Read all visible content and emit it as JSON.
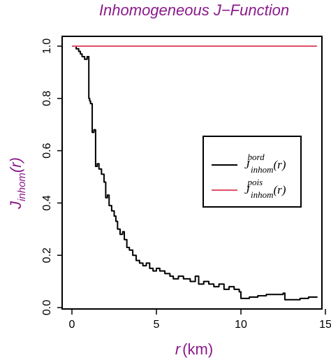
{
  "chart_data": {
    "type": "line",
    "title": "Inhomogeneous J−Function",
    "xlabel": "r",
    "xlabel_unit": "(km)",
    "ylabel": "J",
    "ylabel_sub": "inhom",
    "ylabel_arg": "(r)",
    "xlim": [
      0,
      15
    ],
    "ylim": [
      0,
      1.0
    ],
    "xticks": [
      "0",
      "5",
      "10",
      "15"
    ],
    "yticks": [
      "0.0",
      "0.2",
      "0.4",
      "0.6",
      "0.8",
      "1.0"
    ],
    "legend_position": "right",
    "series": [
      {
        "name_base": "J",
        "name_sup": "bord",
        "name_sub": "inhom",
        "name_arg": "(r)",
        "color": "#000000",
        "step": true,
        "x": [
          0,
          0.25,
          0.4,
          0.5,
          0.6,
          0.75,
          0.9,
          1.0,
          1.05,
          1.1,
          1.2,
          1.3,
          1.4,
          1.5,
          1.6,
          1.75,
          1.9,
          2.0,
          2.1,
          2.2,
          2.35,
          2.5,
          2.6,
          2.7,
          2.85,
          3.0,
          3.1,
          3.25,
          3.4,
          3.6,
          3.8,
          4.0,
          4.2,
          4.4,
          4.6,
          4.8,
          5.0,
          5.2,
          5.5,
          5.8,
          6.0,
          6.3,
          6.6,
          7.0,
          7.3,
          7.5,
          7.8,
          8.1,
          8.4,
          8.7,
          9.0,
          9.3,
          9.6,
          9.9,
          10.0,
          10.5,
          11.0,
          11.5,
          12.0,
          12.5,
          12.6,
          13.0,
          13.5,
          14.0,
          14.5
        ],
        "y": [
          1.0,
          0.99,
          0.98,
          0.97,
          0.96,
          0.95,
          0.96,
          0.8,
          0.79,
          0.78,
          0.67,
          0.68,
          0.54,
          0.55,
          0.53,
          0.51,
          0.48,
          0.42,
          0.43,
          0.39,
          0.37,
          0.35,
          0.33,
          0.3,
          0.28,
          0.29,
          0.26,
          0.23,
          0.22,
          0.2,
          0.18,
          0.17,
          0.16,
          0.17,
          0.15,
          0.14,
          0.15,
          0.14,
          0.13,
          0.12,
          0.11,
          0.12,
          0.11,
          0.1,
          0.12,
          0.09,
          0.1,
          0.09,
          0.08,
          0.09,
          0.07,
          0.08,
          0.07,
          0.06,
          0.035,
          0.04,
          0.045,
          0.05,
          0.05,
          0.055,
          0.03,
          0.03,
          0.035,
          0.04,
          0.042
        ]
      },
      {
        "name_base": "J",
        "name_sup": "pois",
        "name_sub": "inhom",
        "name_arg": "(r)",
        "color": "#e05068",
        "step": false,
        "x": [
          0,
          14.5
        ],
        "y": [
          1.0,
          1.0
        ]
      }
    ],
    "colors": {
      "title": "#8b1a8b",
      "ylabel": "#8b1a8b",
      "axis": "#000000"
    }
  }
}
